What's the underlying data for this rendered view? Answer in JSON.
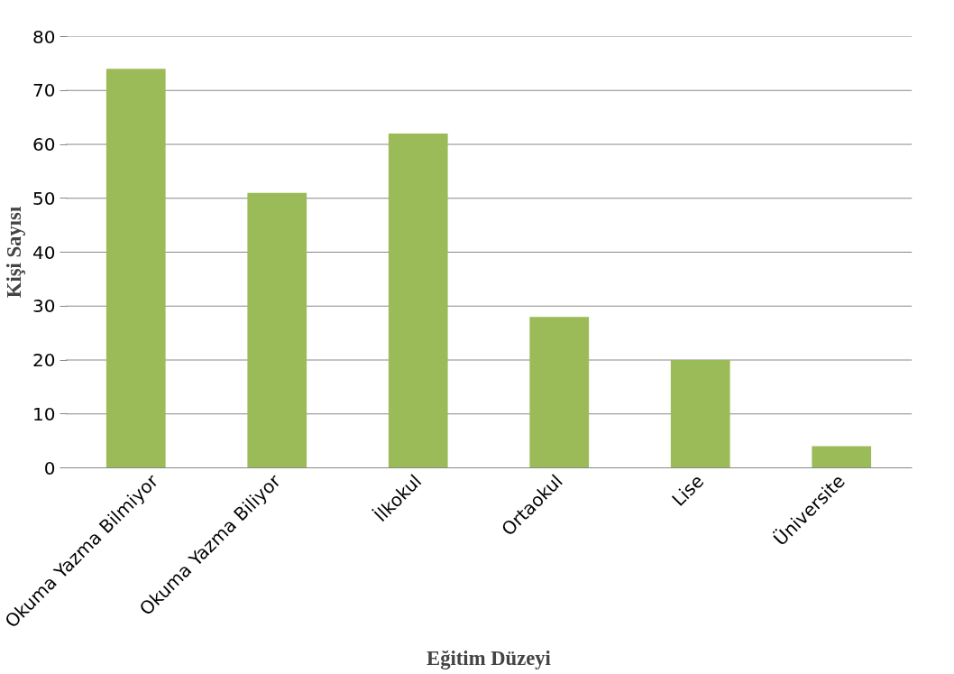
{
  "chart_data": {
    "type": "bar",
    "xlabel": "Eğitim Düzeyi",
    "ylabel": "Kişi Sayısı",
    "categories": [
      "Okuma Yazma Bilmiyor",
      "Okuma Yazma Biliyor",
      "İlkokul",
      "Ortaokul",
      "Lise",
      "Üniversite"
    ],
    "values": [
      74,
      51,
      62,
      28,
      20,
      4
    ],
    "color": "#9bbb59",
    "ylim": [
      0,
      80
    ],
    "yticks": [
      0,
      10,
      20,
      30,
      40,
      50,
      60,
      70,
      80
    ],
    "grid": "y"
  }
}
